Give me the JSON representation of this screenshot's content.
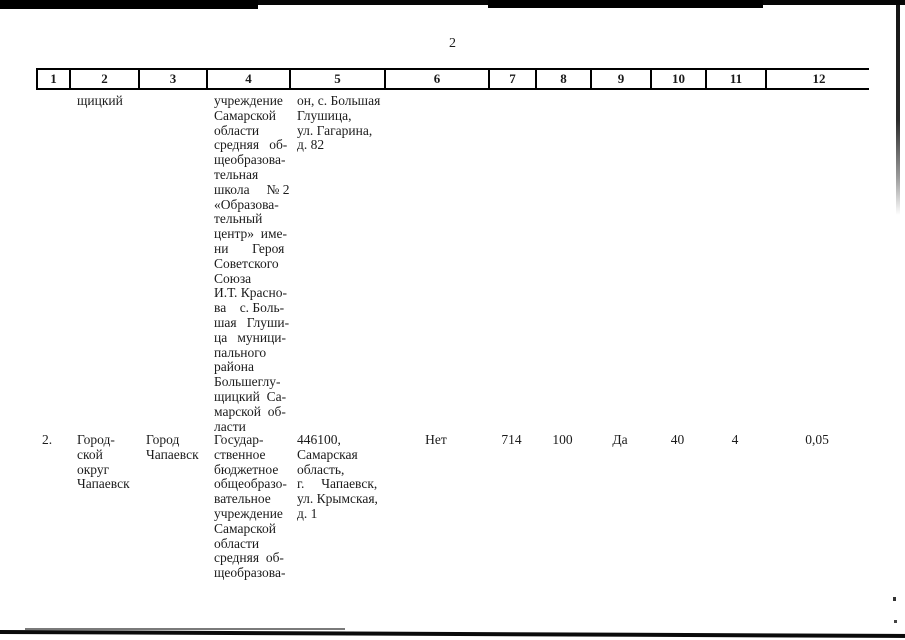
{
  "page": {
    "number": "2"
  },
  "table": {
    "header_labels": [
      "1",
      "2",
      "3",
      "4",
      "5",
      "6",
      "7",
      "8",
      "9",
      "10",
      "11",
      "12"
    ],
    "rows": [
      {
        "c1": "",
        "c2": "щицкий",
        "c3": "",
        "c4": "учреждение\nСамарской\nобласти\nсредняя   об-\nщеобразова-\nтельная\nшкола     № 2\n«Образова-\nтельный\nцентр»  име-\nни       Героя\nСоветского\nСоюза\nИ.Т. Красно-\nва    с. Боль-\nшая   Глуши-\nца   муници-\nпального\nрайона\nБольшеглу-\nщицкий  Са-\nмарской  об-\nласти",
        "c5": "он, с. Большая\nГлушица,\nул. Гагарина,\nд. 82",
        "c6": "",
        "c7": "",
        "c8": "",
        "c9": "",
        "c10": "",
        "c11": "",
        "c12": ""
      },
      {
        "c1": "2.",
        "c2": "Город-\nской\nокруг\nЧапаевск",
        "c3": "Город\nЧапаевск",
        "c4": "Государ-\nственное\nбюджетное\nобщеобразо-\nвательное\nучреждение\nСамарской\nобласти\nсредняя  об-\nщеобразова-",
        "c5": "446100,\nСамарская\nобласть,\nг.     Чапаевск,\nул. Крымская,\nд. 1",
        "c6": "Нет",
        "c7": "714",
        "c8": "100",
        "c9": "Да",
        "c10": "40",
        "c11": "4",
        "c12": "0,05"
      }
    ]
  },
  "colors": {
    "paper": "#ffffff",
    "ink": "#1b1b1b",
    "table_border": "#000000",
    "scan_artifact": "#000000"
  }
}
